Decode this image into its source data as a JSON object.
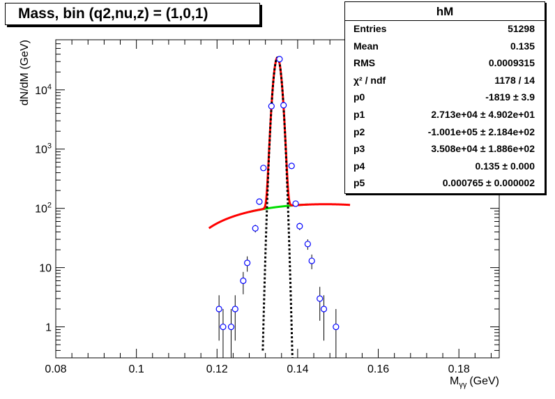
{
  "chart_data": {
    "type": "scatter",
    "title": "Mass, bin (q2,nu,z) = (1,0,1)",
    "xlabel": "Mγγ (GeV)",
    "xlabel_main": "M",
    "xlabel_sub": "γγ",
    "xlabel_unit": "(GeV)",
    "ylabel": "dN/dM (GeV)",
    "xlim": [
      0.08,
      0.19
    ],
    "ylim": [
      0.3,
      70000
    ],
    "yscale": "log",
    "x_ticks": [
      0.08,
      0.1,
      0.12,
      0.14,
      0.16,
      0.18
    ],
    "x_tick_labels": [
      "0.08",
      "0.1",
      "0.12",
      "0.14",
      "0.16",
      "0.18"
    ],
    "y_tick_labels": [
      {
        "value": 1,
        "base": "1",
        "exp": ""
      },
      {
        "value": 10,
        "base": "10",
        "exp": ""
      },
      {
        "value": 100,
        "base": "10",
        "exp": "2"
      },
      {
        "value": 1000,
        "base": "10",
        "exp": "3"
      },
      {
        "value": 10000,
        "base": "10",
        "exp": "4"
      }
    ],
    "series": [
      {
        "name": "hM",
        "kind": "points",
        "color": "#0000ff",
        "x": [
          0.1205,
          0.1215,
          0.1235,
          0.1245,
          0.1265,
          0.1275,
          0.1295,
          0.1305,
          0.1315,
          0.1335,
          0.1355,
          0.1365,
          0.1385,
          0.1395,
          0.1405,
          0.1425,
          0.1435,
          0.1455,
          0.1465,
          0.1495
        ],
        "y": [
          2,
          1,
          1,
          2,
          6,
          12,
          46,
          130,
          480,
          5300,
          33000,
          5500,
          520,
          120,
          50,
          25,
          13,
          3,
          2,
          1
        ]
      },
      {
        "name": "total fit",
        "kind": "curve",
        "color": "#ff0000"
      },
      {
        "name": "background",
        "kind": "curve",
        "color": "#00dd00"
      },
      {
        "name": "signal gaussian",
        "kind": "curve",
        "color": "#000000"
      }
    ],
    "fit": {
      "p0": -1819,
      "p1": 27130,
      "p2": -100100,
      "p3": 35080,
      "p4": 0.135,
      "p5": 0.000765
    }
  },
  "stats_box": {
    "title": "hM",
    "rows": [
      {
        "label": "Entries",
        "value": "51298"
      },
      {
        "label": "Mean",
        "value": "0.135"
      },
      {
        "label": "RMS",
        "value": "0.0009315"
      },
      {
        "label": "χ² / ndf",
        "value": "1178 / 14"
      },
      {
        "label": "p0",
        "value": "-1819 ± 3.9"
      },
      {
        "label": "p1",
        "value": "2.713e+04 ± 4.902e+01"
      },
      {
        "label": "p2",
        "value": "-1.001e+05 ± 2.184e+02"
      },
      {
        "label": "p3",
        "value": "3.508e+04 ± 1.886e+02"
      },
      {
        "label": "p4",
        "value": "0.135 ± 0.000"
      },
      {
        "label": "p5",
        "value": "0.000765 ± 0.000002"
      }
    ]
  }
}
